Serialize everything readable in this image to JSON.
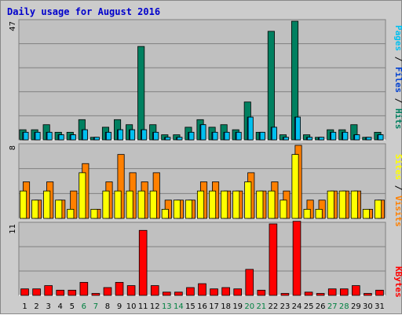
{
  "title": "Daily usage for August 2016",
  "colors": {
    "pages": "#00c0f0",
    "files": "#0040d0",
    "hits": "#008060",
    "visits": "#ff8000",
    "sites": "#ffff00",
    "kbytes": "#ff0000",
    "weekend_day": "#008040",
    "weekday": "#000000",
    "panel_bg": "#c0c0c0",
    "outer_bg": "#cccccc",
    "title": "#0000cc"
  },
  "side_labels": {
    "top": [
      {
        "text": "Pages",
        "color_key": "pages"
      },
      {
        "text": " / ",
        "color_key": "weekday"
      },
      {
        "text": "Files",
        "color_key": "files"
      },
      {
        "text": " / ",
        "color_key": "weekday"
      },
      {
        "text": "Hits",
        "color_key": "hits"
      }
    ],
    "middle": [
      {
        "text": "Sites",
        "color_key": "sites"
      },
      {
        "text": " / ",
        "color_key": "weekday"
      },
      {
        "text": "Visits",
        "color_key": "visits"
      }
    ],
    "bottom": [
      {
        "text": "KBytes",
        "color_key": "kbytes"
      }
    ]
  },
  "chart_data": [
    {
      "type": "bar",
      "panel": "top",
      "ymax_label": "47",
      "ylim": [
        0,
        47
      ],
      "categories": [
        "1",
        "2",
        "3",
        "4",
        "5",
        "6",
        "7",
        "8",
        "9",
        "10",
        "11",
        "12",
        "13",
        "14",
        "15",
        "16",
        "17",
        "18",
        "19",
        "20",
        "21",
        "22",
        "23",
        "24",
        "25",
        "26",
        "27",
        "28",
        "29",
        "30",
        "31"
      ],
      "weekend_days": [
        "6",
        "7",
        "13",
        "14",
        "20",
        "21",
        "27",
        "28"
      ],
      "series": [
        {
          "name": "Hits",
          "color_key": "hits",
          "values": [
            4,
            4,
            6,
            3,
            3,
            8,
            1,
            5,
            8,
            6,
            37,
            6,
            2,
            2,
            5,
            8,
            5,
            6,
            4,
            15,
            3,
            43,
            2,
            47,
            2,
            1,
            4,
            4,
            6,
            1,
            3
          ]
        },
        {
          "name": "Files",
          "color_key": "files",
          "values": [
            3,
            3,
            3,
            2,
            2,
            4,
            1,
            3,
            4,
            4,
            4,
            3,
            1,
            1,
            3,
            6,
            3,
            3,
            3,
            9,
            3,
            5,
            1,
            9,
            1,
            1,
            3,
            3,
            2,
            1,
            2
          ]
        },
        {
          "name": "Pages",
          "color_key": "pages",
          "values": [
            3,
            3,
            3,
            2,
            2,
            4,
            1,
            3,
            4,
            4,
            4,
            3,
            1,
            1,
            3,
            6,
            3,
            3,
            3,
            9,
            3,
            5,
            1,
            9,
            1,
            1,
            3,
            3,
            2,
            1,
            2
          ]
        }
      ]
    },
    {
      "type": "bar",
      "panel": "middle",
      "ymax_label": "8",
      "ylim": [
        0,
        8
      ],
      "series": [
        {
          "name": "Sites",
          "color_key": "sites",
          "values": [
            3,
            2,
            3,
            2,
            1,
            5,
            1,
            3,
            3,
            3,
            3,
            3,
            1,
            2,
            2,
            3,
            3,
            3,
            3,
            4,
            3,
            3,
            2,
            7,
            1,
            1,
            3,
            3,
            3,
            1,
            2
          ]
        },
        {
          "name": "Visits",
          "color_key": "visits",
          "values": [
            4,
            2,
            4,
            2,
            3,
            6,
            1,
            4,
            7,
            5,
            4,
            5,
            2,
            2,
            2,
            4,
            4,
            3,
            3,
            5,
            3,
            4,
            3,
            8,
            2,
            2,
            3,
            3,
            3,
            1,
            2
          ]
        }
      ]
    },
    {
      "type": "bar",
      "panel": "bottom",
      "ymax_label": "11",
      "ylim": [
        0,
        11
      ],
      "series": [
        {
          "name": "KBytes",
          "color_key": "kbytes",
          "values": [
            1,
            1,
            1.5,
            0.8,
            0.8,
            2,
            0.3,
            1.2,
            2,
            1.5,
            10,
            1.5,
            0.5,
            0.5,
            1.2,
            1.8,
            1,
            1.2,
            1,
            4,
            0.8,
            11,
            0.3,
            11.4,
            0.5,
            0.3,
            1,
            1,
            1.5,
            0.3,
            0.8
          ]
        }
      ]
    }
  ]
}
